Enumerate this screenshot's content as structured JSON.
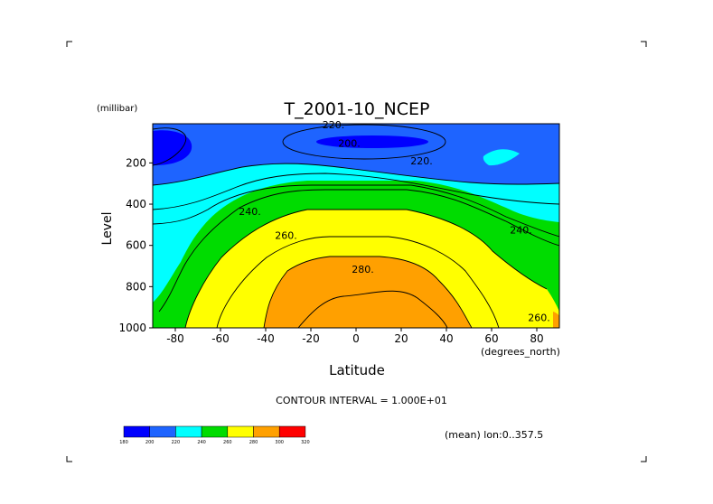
{
  "chart_data": {
    "type": "heatmap",
    "title": "T_2001-10_NCEP",
    "xlabel": "Latitude",
    "xunit": "(degrees_north)",
    "ylabel": "Level",
    "yunit": "(millibar)",
    "xlim": [
      -90,
      90
    ],
    "ylim": [
      1000,
      10
    ],
    "x_ticks": [
      -80,
      -60,
      -40,
      -20,
      0,
      20,
      40,
      60,
      80
    ],
    "y_ticks": [
      200,
      400,
      600,
      800,
      1000
    ],
    "contour_interval_text": "CONTOUR INTERVAL = 1.000E+01",
    "mean_note": "(mean) lon:0..357.5",
    "contour_labels": [
      {
        "text": "220.",
        "lat": -10,
        "lev": 15
      },
      {
        "text": "200.",
        "lat": -3,
        "lev": 105
      },
      {
        "text": "220.",
        "lat": 29,
        "lev": 190
      },
      {
        "text": "240.",
        "lat": -47,
        "lev": 435
      },
      {
        "text": "260.",
        "lat": -31,
        "lev": 550
      },
      {
        "text": "240.",
        "lat": 73,
        "lev": 525
      },
      {
        "text": "280.",
        "lat": 3,
        "lev": 715
      },
      {
        "text": "260.",
        "lat": 81,
        "lev": 950
      }
    ],
    "colorbar": {
      "levels": [
        180,
        200,
        220,
        240,
        260,
        280,
        300,
        320
      ],
      "colors": [
        "#0000ff",
        "#1e64ff",
        "#00ffff",
        "#00dc00",
        "#ffff00",
        "#ffa000",
        "#ff0000"
      ]
    }
  }
}
